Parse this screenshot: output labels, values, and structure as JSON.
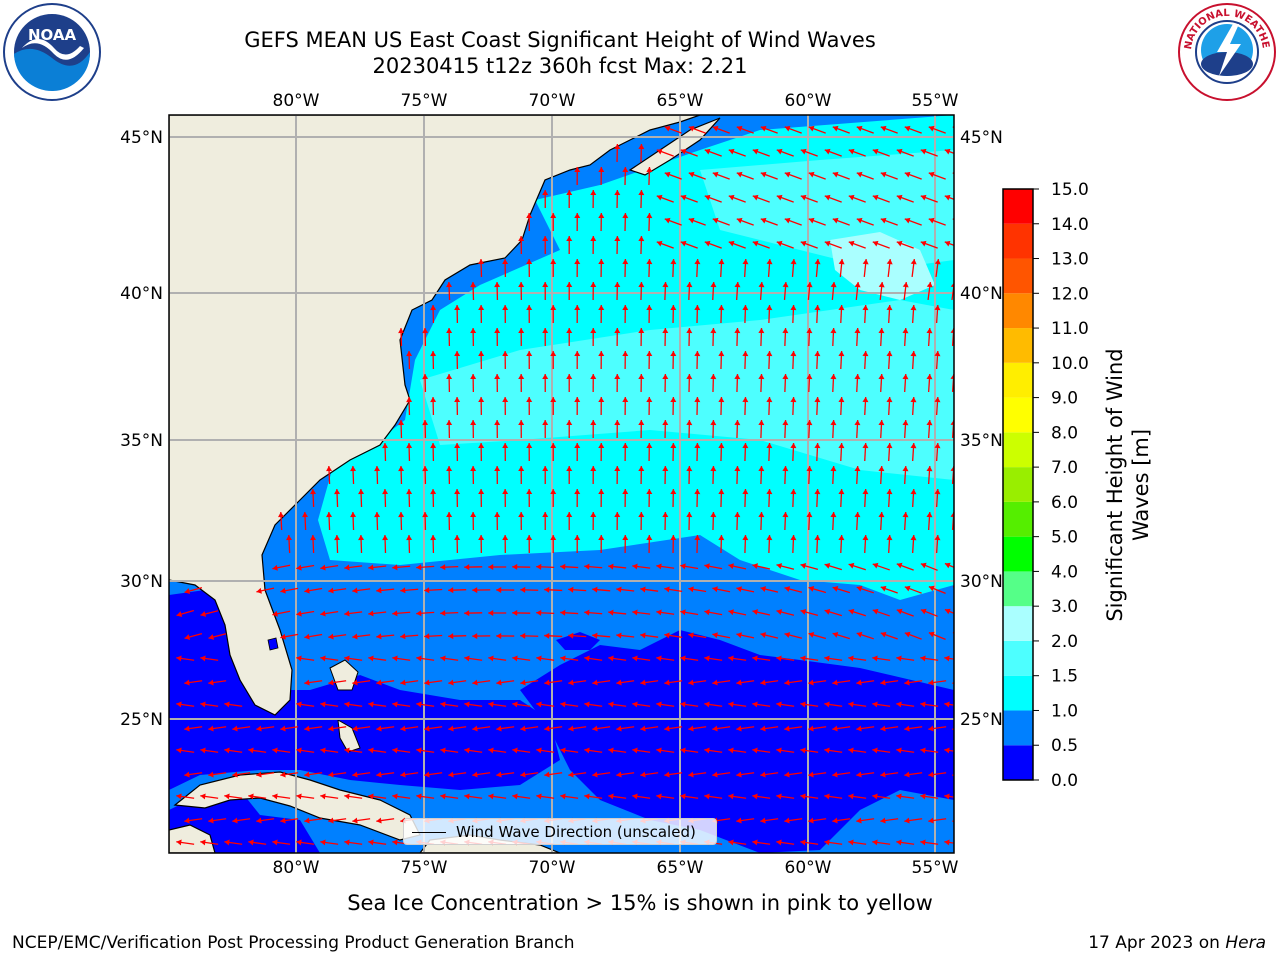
{
  "header": {
    "title_line1": "GEFS MEAN US East Coast Significant Height of Wind Waves",
    "title_line2": "20230415 t12z 360h fcst   Max: 2.21"
  },
  "logos": {
    "left": {
      "icon": "noaa-logo",
      "text": "NOAA",
      "ring_text": "NATIONAL OCEANIC AND ATMOSPHERIC ADMINISTRATION · U.S. DEPARTMENT OF COMMERCE"
    },
    "right": {
      "icon": "nws-logo",
      "ring_text": "NATIONAL WEATHER SERVICE"
    }
  },
  "map": {
    "lon_labels": [
      "80°W",
      "75°W",
      "70°W",
      "65°W",
      "60°W",
      "55°W"
    ],
    "lat_labels": [
      "45°N",
      "40°N",
      "35°N",
      "30°N",
      "25°N"
    ],
    "colors": {
      "land": "#efedde",
      "coast": "#000000",
      "grid": "#b0b0b0",
      "arrow": "#ff0000"
    }
  },
  "legend": {
    "label": "Wind Wave Direction (unscaled)"
  },
  "colorbar": {
    "title_line1": "Significant Height of Wind",
    "title_line2": "Waves [m]",
    "ticks": [
      "0.0",
      "0.5",
      "1.0",
      "1.5",
      "2.0",
      "3.0",
      "4.0",
      "5.0",
      "6.0",
      "7.0",
      "8.0",
      "9.0",
      "10.0",
      "11.0",
      "12.0",
      "13.0",
      "14.0",
      "15.0"
    ],
    "colors": [
      "#0000ff",
      "#0080ff",
      "#00ffff",
      "#4dffff",
      "#aaffff",
      "#55ff88",
      "#00ff00",
      "#55ee00",
      "#99ee00",
      "#ccff00",
      "#ffff00",
      "#ffee00",
      "#ffbb00",
      "#ff8800",
      "#ff5500",
      "#ff3300",
      "#ff0000"
    ]
  },
  "footer": {
    "sea_ice_note": "Sea Ice Concentration > 15% is shown in pink to yellow",
    "left": "NCEP/EMC/Verification Post Processing Product Generation Branch",
    "date": "17 Apr 2023 on",
    "host": "Hera"
  }
}
